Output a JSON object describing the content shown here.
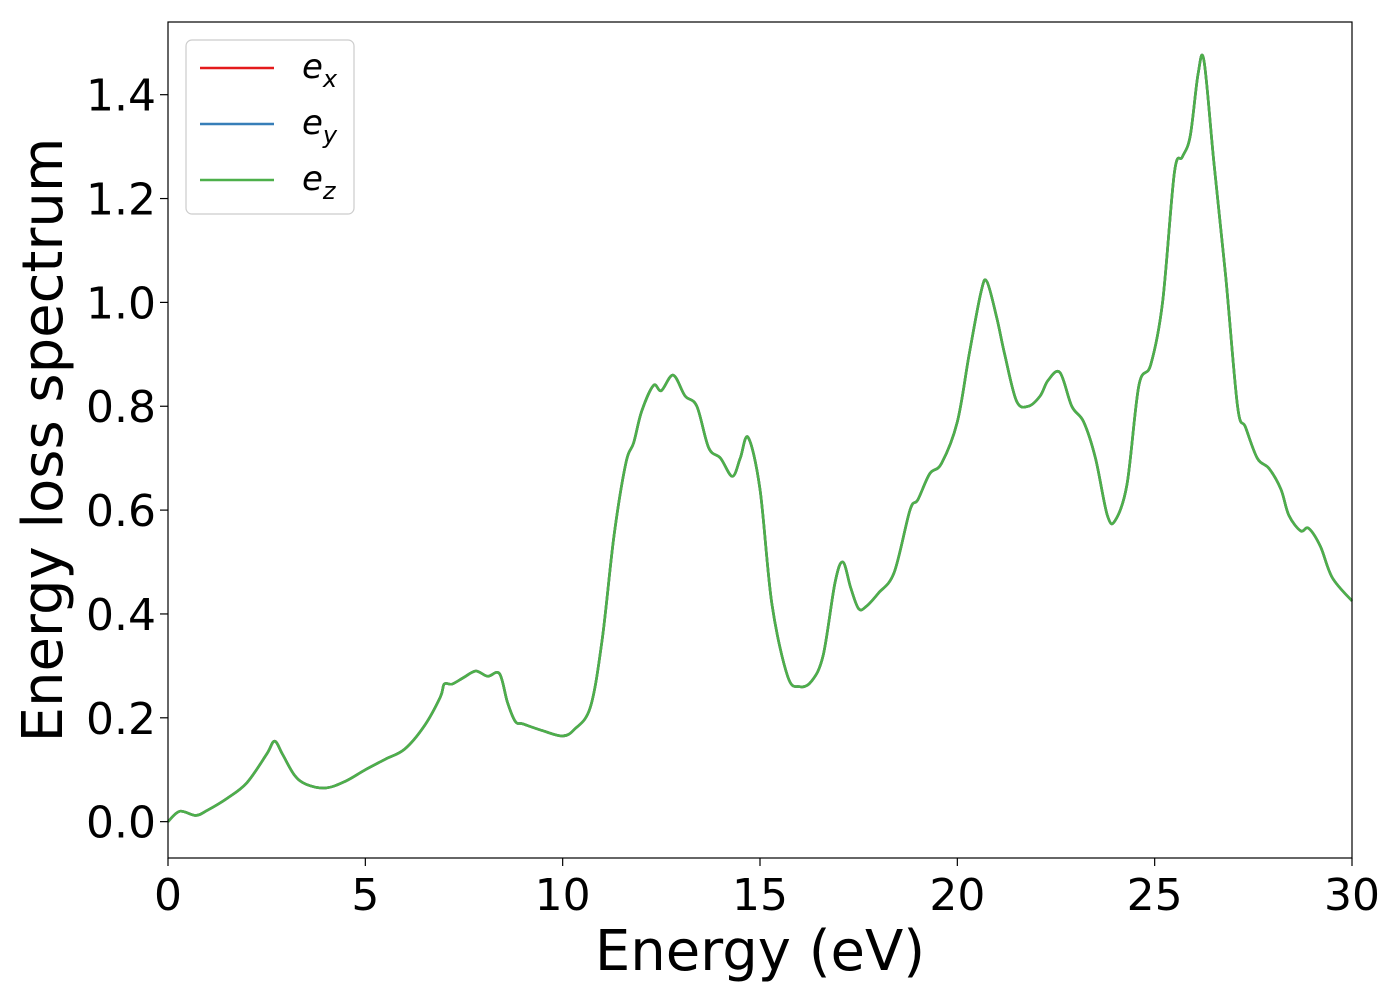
{
  "chart_data": {
    "type": "line",
    "title": "",
    "xlabel": "Energy (eV)",
    "ylabel": "Energy loss spectrum",
    "xlim": [
      0,
      30
    ],
    "ylim": [
      -0.07,
      1.54
    ],
    "xticks": [
      0,
      5,
      10,
      15,
      20,
      25,
      30
    ],
    "xtick_labels": [
      "0",
      "5",
      "10",
      "15",
      "20",
      "25",
      "30"
    ],
    "yticks": [
      0.0,
      0.2,
      0.4,
      0.6,
      0.8,
      1.0,
      1.2,
      1.4
    ],
    "ytick_labels": [
      "0.0",
      "0.2",
      "0.4",
      "0.6",
      "0.8",
      "1.0",
      "1.2",
      "1.4"
    ],
    "grid": false,
    "legend_position": "top-left",
    "x": [
      0,
      0.3,
      0.7,
      1.0,
      1.5,
      2.0,
      2.5,
      2.7,
      2.9,
      3.2,
      3.5,
      4.0,
      4.5,
      5.0,
      5.5,
      6.0,
      6.5,
      6.9,
      7.0,
      7.2,
      7.5,
      7.8,
      8.1,
      8.4,
      8.6,
      8.8,
      9.0,
      9.5,
      10.0,
      10.3,
      10.7,
      11.0,
      11.3,
      11.6,
      11.8,
      12.0,
      12.3,
      12.5,
      12.8,
      13.1,
      13.4,
      13.7,
      14.0,
      14.3,
      14.5,
      14.7,
      15.0,
      15.3,
      15.7,
      16.0,
      16.3,
      16.6,
      16.9,
      17.1,
      17.3,
      17.5,
      17.7,
      18.0,
      18.4,
      18.8,
      19.0,
      19.3,
      19.6,
      20.0,
      20.3,
      20.6,
      20.75,
      21.0,
      21.2,
      21.5,
      21.8,
      22.1,
      22.3,
      22.6,
      22.9,
      23.2,
      23.5,
      23.8,
      24.0,
      24.3,
      24.6,
      24.9,
      25.2,
      25.5,
      25.7,
      25.9,
      26.1,
      26.25,
      26.5,
      26.8,
      27.1,
      27.3,
      27.6,
      27.9,
      28.2,
      28.4,
      28.7,
      28.9,
      29.2,
      29.5,
      30.0
    ],
    "series": [
      {
        "name": "e_x",
        "color": "#e41a1c",
        "values": [
          0.0,
          0.02,
          0.012,
          0.022,
          0.045,
          0.075,
          0.13,
          0.155,
          0.13,
          0.09,
          0.072,
          0.065,
          0.078,
          0.1,
          0.12,
          0.14,
          0.185,
          0.24,
          0.265,
          0.265,
          0.278,
          0.29,
          0.28,
          0.285,
          0.23,
          0.193,
          0.188,
          0.175,
          0.165,
          0.178,
          0.22,
          0.35,
          0.55,
          0.69,
          0.73,
          0.79,
          0.84,
          0.83,
          0.86,
          0.82,
          0.8,
          0.72,
          0.7,
          0.665,
          0.7,
          0.74,
          0.64,
          0.42,
          0.28,
          0.26,
          0.27,
          0.32,
          0.46,
          0.5,
          0.45,
          0.41,
          0.415,
          0.44,
          0.48,
          0.6,
          0.62,
          0.67,
          0.69,
          0.77,
          0.9,
          1.02,
          1.04,
          0.97,
          0.9,
          0.81,
          0.8,
          0.82,
          0.85,
          0.865,
          0.8,
          0.77,
          0.7,
          0.59,
          0.58,
          0.65,
          0.84,
          0.88,
          1.0,
          1.25,
          1.28,
          1.32,
          1.44,
          1.465,
          1.27,
          1.05,
          0.8,
          0.76,
          0.7,
          0.68,
          0.64,
          0.59,
          0.56,
          0.565,
          0.53,
          0.47,
          0.425
        ]
      },
      {
        "name": "e_y",
        "color": "#377eb8",
        "values": [
          0.0,
          0.02,
          0.012,
          0.022,
          0.045,
          0.075,
          0.13,
          0.155,
          0.13,
          0.09,
          0.072,
          0.065,
          0.078,
          0.1,
          0.12,
          0.14,
          0.185,
          0.24,
          0.265,
          0.265,
          0.278,
          0.29,
          0.28,
          0.285,
          0.23,
          0.193,
          0.188,
          0.175,
          0.165,
          0.178,
          0.22,
          0.35,
          0.55,
          0.69,
          0.73,
          0.79,
          0.84,
          0.83,
          0.86,
          0.82,
          0.8,
          0.72,
          0.7,
          0.665,
          0.7,
          0.74,
          0.64,
          0.42,
          0.28,
          0.26,
          0.27,
          0.32,
          0.46,
          0.5,
          0.45,
          0.41,
          0.415,
          0.44,
          0.48,
          0.6,
          0.62,
          0.67,
          0.69,
          0.77,
          0.9,
          1.02,
          1.04,
          0.97,
          0.9,
          0.81,
          0.8,
          0.82,
          0.85,
          0.865,
          0.8,
          0.77,
          0.7,
          0.59,
          0.58,
          0.65,
          0.84,
          0.88,
          1.0,
          1.25,
          1.28,
          1.32,
          1.44,
          1.465,
          1.27,
          1.05,
          0.8,
          0.76,
          0.7,
          0.68,
          0.64,
          0.59,
          0.56,
          0.565,
          0.53,
          0.47,
          0.425
        ]
      },
      {
        "name": "e_z",
        "color": "#4daf4a",
        "values": [
          0.0,
          0.02,
          0.012,
          0.022,
          0.045,
          0.075,
          0.13,
          0.155,
          0.13,
          0.09,
          0.072,
          0.065,
          0.078,
          0.1,
          0.12,
          0.14,
          0.185,
          0.24,
          0.265,
          0.265,
          0.278,
          0.29,
          0.28,
          0.285,
          0.23,
          0.193,
          0.188,
          0.175,
          0.165,
          0.178,
          0.22,
          0.35,
          0.55,
          0.69,
          0.73,
          0.79,
          0.84,
          0.83,
          0.86,
          0.82,
          0.8,
          0.72,
          0.7,
          0.665,
          0.7,
          0.74,
          0.64,
          0.42,
          0.28,
          0.26,
          0.27,
          0.32,
          0.46,
          0.5,
          0.45,
          0.41,
          0.415,
          0.44,
          0.48,
          0.6,
          0.62,
          0.67,
          0.69,
          0.77,
          0.9,
          1.02,
          1.04,
          0.97,
          0.9,
          0.81,
          0.8,
          0.82,
          0.85,
          0.865,
          0.8,
          0.77,
          0.7,
          0.59,
          0.58,
          0.65,
          0.84,
          0.88,
          1.0,
          1.25,
          1.28,
          1.32,
          1.44,
          1.465,
          1.27,
          1.05,
          0.8,
          0.76,
          0.7,
          0.68,
          0.64,
          0.59,
          0.56,
          0.565,
          0.53,
          0.47,
          0.425
        ]
      }
    ],
    "legend": [
      {
        "base": "e",
        "sub": "x",
        "color": "#e41a1c"
      },
      {
        "base": "e",
        "sub": "y",
        "color": "#377eb8"
      },
      {
        "base": "e",
        "sub": "z",
        "color": "#4daf4a"
      }
    ]
  }
}
